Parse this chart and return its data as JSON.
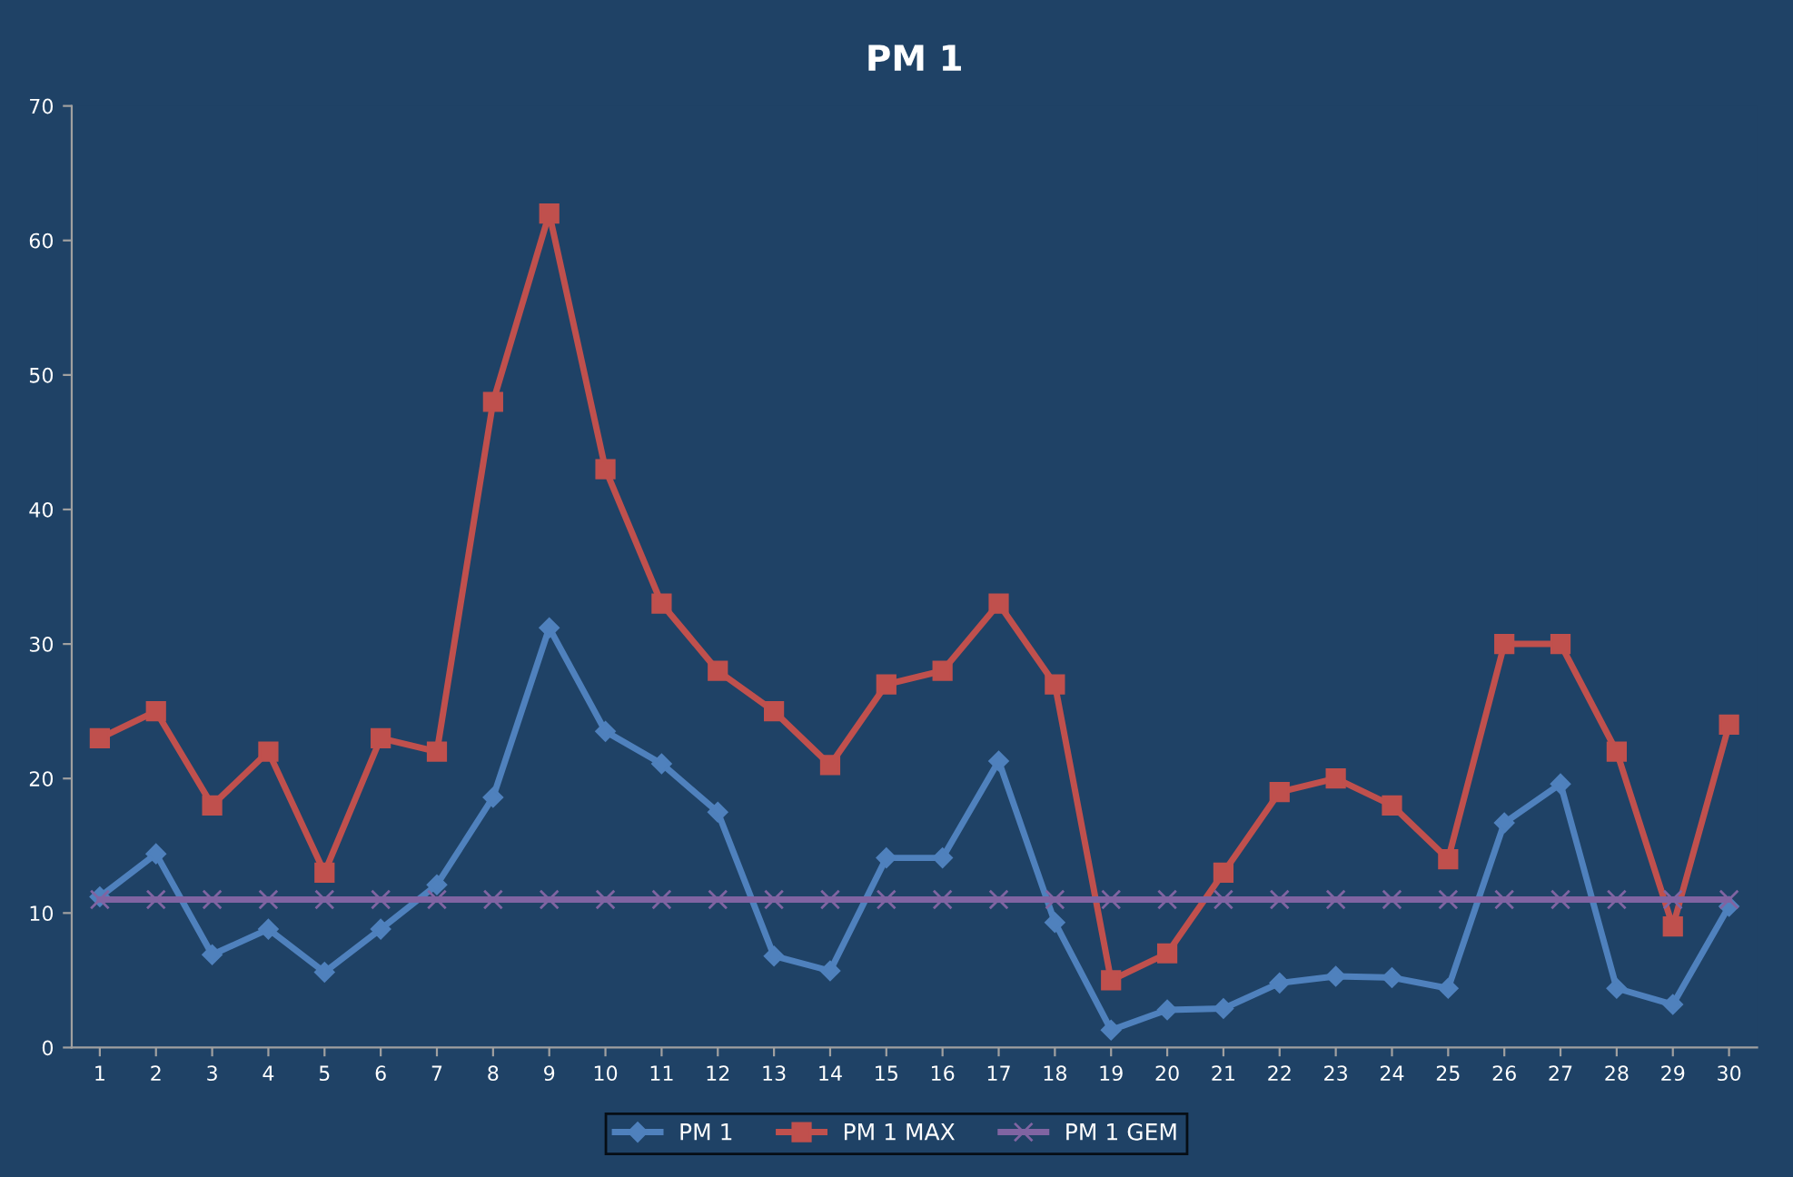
{
  "chart_data": {
    "type": "line",
    "title": "PM 1",
    "categories": [
      "1",
      "2",
      "3",
      "4",
      "5",
      "6",
      "7",
      "8",
      "9",
      "10",
      "11",
      "12",
      "13",
      "14",
      "15",
      "16",
      "17",
      "18",
      "19",
      "20",
      "21",
      "22",
      "23",
      "24",
      "25",
      "26",
      "27",
      "28",
      "29",
      "30"
    ],
    "series": [
      {
        "name": "PM 1",
        "color": "#4f81bd",
        "marker": "diamond",
        "values": [
          11.2,
          14.4,
          6.9,
          8.8,
          5.6,
          8.8,
          12.1,
          18.6,
          31.2,
          23.5,
          21.1,
          17.5,
          6.8,
          5.7,
          14.1,
          14.1,
          21.3,
          9.3,
          1.3,
          2.8,
          2.9,
          4.8,
          5.3,
          5.2,
          4.4,
          16.7,
          19.6,
          4.4,
          3.2,
          10.5
        ]
      },
      {
        "name": "PM 1 MAX",
        "color": "#c0504d",
        "marker": "square",
        "values": [
          23,
          25,
          18,
          22,
          13,
          23,
          22,
          48,
          62,
          43,
          33,
          28,
          25,
          21,
          27,
          28,
          33,
          27,
          5,
          7,
          13,
          19,
          20,
          18,
          14,
          30,
          30,
          22,
          9,
          24
        ]
      },
      {
        "name": "PM 1 GEM",
        "color": "#8064a2",
        "marker": "cross",
        "values": [
          11,
          11,
          11,
          11,
          11,
          11,
          11,
          11,
          11,
          11,
          11,
          11,
          11,
          11,
          11,
          11,
          11,
          11,
          11,
          11,
          11,
          11,
          11,
          11,
          11,
          11,
          11,
          11,
          11,
          11
        ]
      }
    ],
    "ylim": [
      0,
      70
    ],
    "yticks": [
      0,
      10,
      20,
      30,
      40,
      50,
      60,
      70
    ],
    "grid": false,
    "legend": "bottom"
  }
}
